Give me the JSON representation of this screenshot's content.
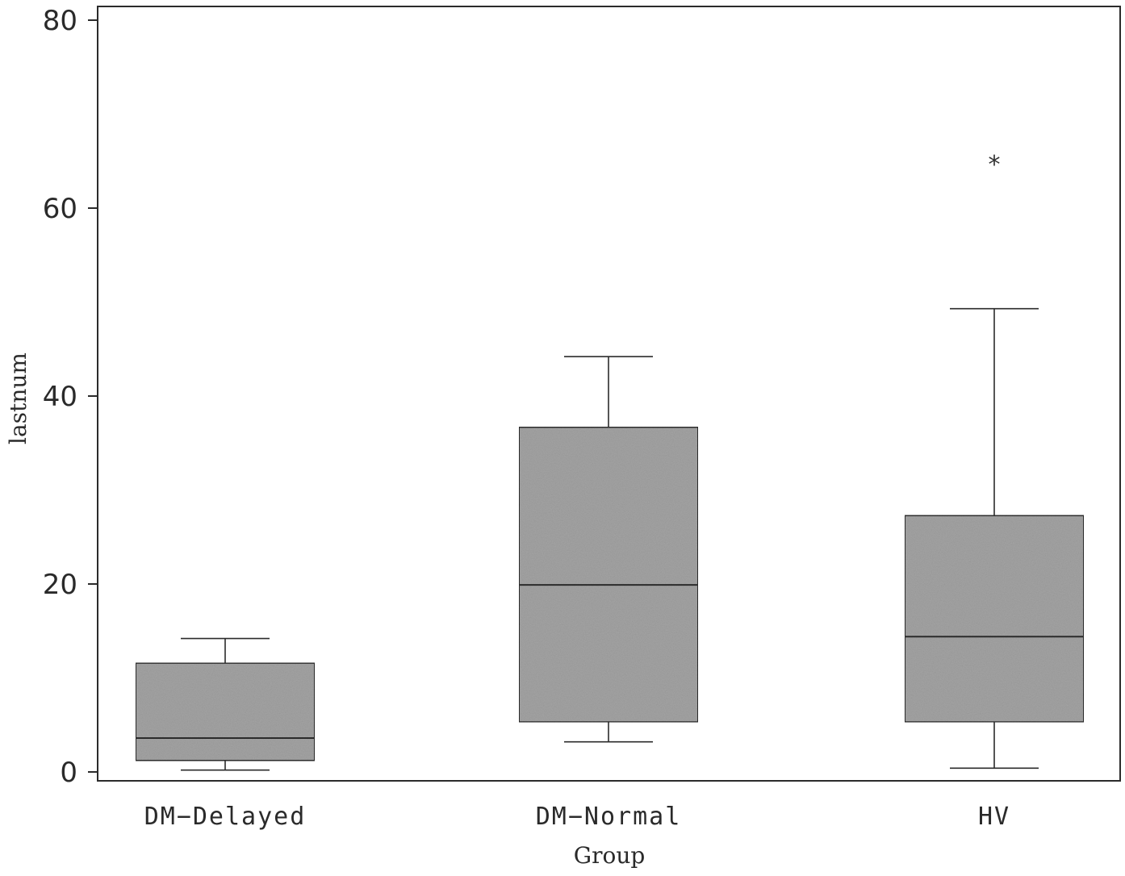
{
  "chart_data": {
    "type": "box",
    "xlabel": "Group",
    "ylabel": "lastnum",
    "ylim": [
      0,
      80
    ],
    "yticks": [
      0,
      20,
      40,
      60,
      80
    ],
    "grid": false,
    "categories": [
      "DM−Delayed",
      "DM−Normal",
      "HV"
    ],
    "boxes": [
      {
        "category": "DM−Delayed",
        "whisker_low": 0.2,
        "q1": 1.2,
        "median": 3.6,
        "q3": 11.6,
        "whisker_high": 14.2,
        "outliers": []
      },
      {
        "category": "DM−Normal",
        "whisker_low": 3.2,
        "q1": 5.3,
        "median": 19.9,
        "q3": 36.7,
        "whisker_high": 44.2,
        "outliers": []
      },
      {
        "category": "HV",
        "whisker_low": 0.4,
        "q1": 5.3,
        "median": 14.4,
        "q3": 27.3,
        "whisker_high": 49.3,
        "outliers": [
          65
        ]
      }
    ],
    "colors": {
      "box_fill": "#a4a4a4",
      "line": "#2b2b2b"
    }
  }
}
